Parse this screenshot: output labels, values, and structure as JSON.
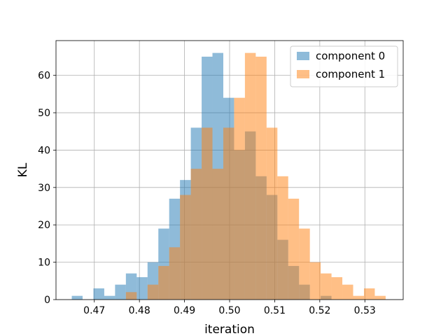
{
  "chart_data": {
    "type": "bar",
    "subtype": "overlapping-histogram",
    "title": "",
    "xlabel": "iteration",
    "ylabel": "KL",
    "xlim": [
      0.4615,
      0.5385
    ],
    "ylim": [
      0,
      69.3
    ],
    "xticks": [
      0.47,
      0.48,
      0.49,
      0.5,
      0.51,
      0.52,
      0.53
    ],
    "xtick_labels": [
      "0.47",
      "0.48",
      "0.49",
      "0.50",
      "0.51",
      "0.52",
      "0.53"
    ],
    "yticks": [
      0,
      10,
      20,
      30,
      40,
      50,
      60
    ],
    "ytick_labels": [
      "0",
      "10",
      "20",
      "30",
      "40",
      "50",
      "60"
    ],
    "grid": true,
    "legend_position": "top-right",
    "series": [
      {
        "name": "component 0",
        "color": "#1f77b4",
        "alpha": 0.5,
        "bin_edges": [
          0.465,
          0.4674,
          0.4698,
          0.4722,
          0.4746,
          0.477,
          0.4794,
          0.4818,
          0.4842,
          0.4866,
          0.489,
          0.4914,
          0.4938,
          0.4962,
          0.4986,
          0.501,
          0.5034,
          0.5058,
          0.5082,
          0.5106,
          0.513,
          0.5154,
          0.5178,
          0.5202,
          0.5226
        ],
        "counts": [
          1,
          0,
          3,
          1,
          4,
          7,
          6,
          10,
          19,
          27,
          32,
          46,
          65,
          66,
          54,
          40,
          45,
          33,
          28,
          16,
          9,
          4,
          0,
          1
        ]
      },
      {
        "name": "component 1",
        "color": "#ff7f0e",
        "alpha": 0.5,
        "bin_edges": [
          0.477,
          0.4794,
          0.4818,
          0.4842,
          0.4866,
          0.489,
          0.4914,
          0.4938,
          0.4962,
          0.4986,
          0.501,
          0.5034,
          0.5058,
          0.5082,
          0.5106,
          0.513,
          0.5154,
          0.5178,
          0.5202,
          0.5226,
          0.525,
          0.5274,
          0.5298,
          0.5322,
          0.5346
        ],
        "counts": [
          2,
          0,
          4,
          9,
          14,
          28,
          35,
          46,
          35,
          46,
          54,
          66,
          65,
          46,
          33,
          27,
          19,
          10,
          7,
          6,
          4,
          1,
          3,
          1
        ]
      }
    ]
  }
}
